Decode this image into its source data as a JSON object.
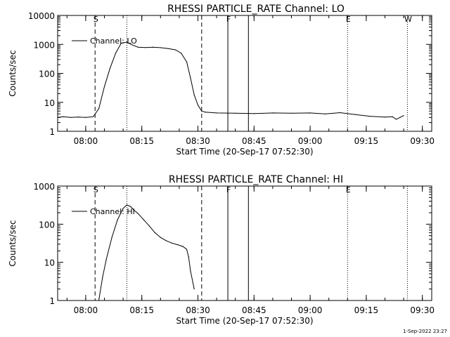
{
  "chart_data": [
    {
      "type": "line",
      "title": "RHESSI PARTICLE_RATE Channel: LO",
      "xlabel": "Start Time (20-Sep-17 07:52:30)",
      "ylabel": "Counts/sec",
      "yscale": "log",
      "xlim": [
        "07:52:30",
        "09:32:30"
      ],
      "ylim": [
        1,
        10000
      ],
      "x_ticks": [
        "08:00",
        "08:15",
        "08:30",
        "08:45",
        "09:00",
        "09:15",
        "09:30"
      ],
      "y_ticks": [
        "1",
        "10",
        "100",
        "1000",
        "10000"
      ],
      "legend": {
        "label": "Channel: LO",
        "position": "top-left"
      },
      "series": [
        {
          "name": "Channel: LO",
          "x": [
            "07:52:30",
            "07:54:00",
            "07:56:00",
            "07:58:00",
            "08:00:00",
            "08:02:00",
            "08:03:30",
            "08:05:00",
            "08:06:30",
            "08:08:00",
            "08:09:30",
            "08:11:00",
            "08:12:30",
            "08:14:00",
            "08:16:00",
            "08:18:00",
            "08:20:00",
            "08:22:00",
            "08:24:00",
            "08:25:30",
            "08:27:00",
            "08:28:00",
            "08:29:00",
            "08:30:00",
            "08:31:00",
            "08:32:00",
            "08:35:00",
            "08:40:00",
            "08:45:00",
            "08:50:00",
            "08:55:00",
            "09:00:00",
            "09:04:00",
            "09:08:00",
            "09:12:00",
            "09:16:00",
            "09:20:00",
            "09:22:00",
            "09:23:00",
            "09:24:00",
            "09:25:00"
          ],
          "y": [
            3,
            3.2,
            3,
            3.1,
            3,
            3.2,
            6,
            35,
            150,
            500,
            1100,
            1200,
            950,
            800,
            780,
            800,
            770,
            720,
            650,
            500,
            250,
            70,
            18,
            8,
            5,
            4.6,
            4.3,
            4.2,
            4.1,
            4.3,
            4.2,
            4.3,
            4,
            4.4,
            3.8,
            3.3,
            3.1,
            3.2,
            2.6,
            3,
            3.5
          ]
        }
      ],
      "annotations": [
        {
          "label": "S",
          "x": "08:02:30",
          "line": "dashed"
        },
        {
          "label": "",
          "x": "08:11:00",
          "line": "dotted"
        },
        {
          "label": "",
          "x": "08:31:00",
          "line": "dashed"
        },
        {
          "label": "F",
          "x": "08:38:00",
          "line": "solid"
        },
        {
          "label": "",
          "x": "08:43:30",
          "line": "solid"
        },
        {
          "label": "E",
          "x": "09:10:00",
          "line": "dotted"
        },
        {
          "label": "W",
          "x": "09:26:00",
          "line": "dotted"
        }
      ]
    },
    {
      "type": "line",
      "title": "RHESSI PARTICLE_RATE Channel: HI",
      "xlabel": "Start Time (20-Sep-17 07:52:30)",
      "ylabel": "Counts/sec",
      "yscale": "log",
      "xlim": [
        "07:52:30",
        "09:32:30"
      ],
      "ylim": [
        1,
        1000
      ],
      "x_ticks": [
        "08:00",
        "08:15",
        "08:30",
        "08:45",
        "09:00",
        "09:15",
        "09:30"
      ],
      "y_ticks": [
        "1",
        "10",
        "100",
        "1000"
      ],
      "legend": {
        "label": "Channel: HI",
        "position": "top-left"
      },
      "series": [
        {
          "name": "Channel: HI",
          "x": [
            "08:03:30",
            "08:04:30",
            "08:05:30",
            "08:07:00",
            "08:08:30",
            "08:10:00",
            "08:11:00",
            "08:12:00",
            "08:13:00",
            "08:14:00",
            "08:15:30",
            "08:17:00",
            "08:18:30",
            "08:20:00",
            "08:21:30",
            "08:23:00",
            "08:24:30",
            "08:26:00",
            "08:27:00",
            "08:27:30",
            "08:28:00",
            "08:29:00"
          ],
          "y": [
            1,
            4,
            12,
            45,
            130,
            260,
            320,
            290,
            230,
            190,
            130,
            90,
            60,
            45,
            37,
            32,
            29,
            26,
            22,
            14,
            6,
            2
          ]
        }
      ],
      "annotations": [
        {
          "label": "S",
          "x": "08:02:30",
          "line": "dashed"
        },
        {
          "label": "",
          "x": "08:11:00",
          "line": "dotted"
        },
        {
          "label": "",
          "x": "08:31:00",
          "line": "dashed"
        },
        {
          "label": "F",
          "x": "08:38:00",
          "line": "solid"
        },
        {
          "label": "",
          "x": "08:43:30",
          "line": "solid"
        },
        {
          "label": "E",
          "x": "09:10:00",
          "line": "dotted"
        },
        {
          "label": "",
          "x": "09:26:00",
          "line": "dotted"
        }
      ]
    }
  ],
  "footer": {
    "timestamp": "1-Sep-2022 23:27"
  }
}
